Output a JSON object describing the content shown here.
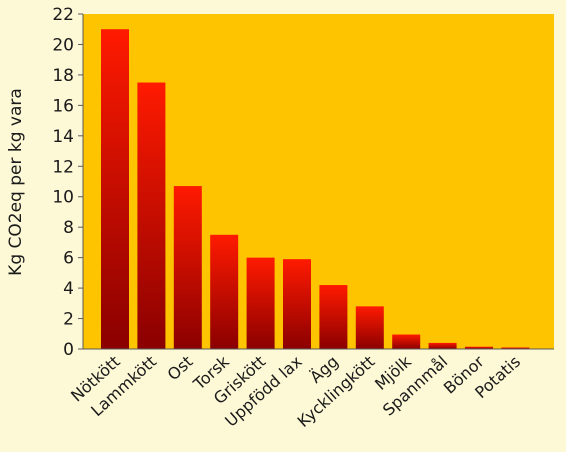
{
  "chart_data": {
    "type": "bar",
    "ylabel": "Kg CO2eq per kg vara",
    "xlabel": "",
    "title": "",
    "ylim": [
      0,
      22
    ],
    "yticks": [
      0,
      2,
      4,
      6,
      8,
      10,
      12,
      14,
      16,
      18,
      20,
      22
    ],
    "categories": [
      "Nötkött",
      "Lammkött",
      "Ost",
      "Torsk",
      "Griskött",
      "Uppfödd lax",
      "Ägg",
      "Kycklingkött",
      "Mjölk",
      "Spannmål",
      "Bönor",
      "Potatis"
    ],
    "values": [
      21.0,
      17.5,
      10.7,
      7.5,
      6.0,
      5.9,
      4.2,
      2.8,
      0.95,
      0.4,
      0.15,
      0.1
    ],
    "grid": false,
    "colors": {
      "plot_background": "#ffc400",
      "page_background": "#fdf8d6",
      "bar_top": "#ff1a00",
      "bar_bottom": "#8a0000",
      "axis": "#5a5a5a"
    }
  }
}
